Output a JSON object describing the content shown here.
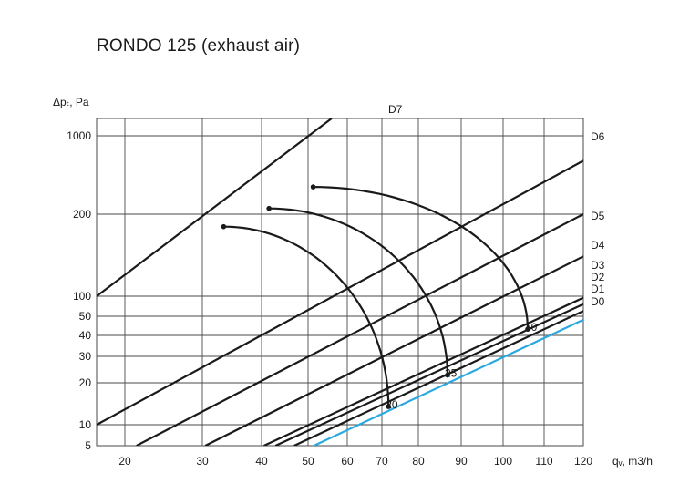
{
  "chart_data": {
    "type": "line",
    "title": "RONDO 125 (exhaust air)",
    "ylabel": "Δpₜ, Pa",
    "xlabel": "qᵥ, m3/h",
    "grid": true,
    "x_ticks": [
      "20",
      "30",
      "40",
      "50",
      "60",
      "70",
      "80",
      "90",
      "100",
      "110",
      "120"
    ],
    "y_ticks": [
      "1000",
      "200",
      "100",
      "50",
      "40",
      "30",
      "20",
      "10",
      "5"
    ],
    "colors": {
      "lines": "#1a1a1a",
      "highlight": "#29a8e0",
      "grid": "#4a4a4a"
    },
    "series": [
      {
        "name": "D7",
        "highlight": false,
        "x": [
          15.5,
          56
        ],
        "y": [
          100,
          1350
        ]
      },
      {
        "name": "D6",
        "highlight": false,
        "x": [
          15.5,
          120
        ],
        "y": [
          10,
          600
        ]
      },
      {
        "name": "D5",
        "highlight": false,
        "x": [
          21.5,
          120
        ],
        "y": [
          5,
          200
        ]
      },
      {
        "name": "D4",
        "highlight": false,
        "x": [
          30.5,
          120
        ],
        "y": [
          5,
          140
        ]
      },
      {
        "name": "D3",
        "highlight": false,
        "x": [
          40.5,
          120
        ],
        "y": [
          5,
          95
        ]
      },
      {
        "name": "D2",
        "highlight": false,
        "x": [
          43,
          120
        ],
        "y": [
          5,
          76
        ]
      },
      {
        "name": "D1",
        "highlight": false,
        "x": [
          47,
          120
        ],
        "y": [
          5,
          60
        ]
      },
      {
        "name": "D0",
        "highlight": true,
        "x": [
          51.5,
          120
        ],
        "y": [
          5,
          48
        ]
      }
    ],
    "sound_curves": [
      {
        "label": "20",
        "x": [
          33.6,
          71.8
        ],
        "y": [
          180,
          13.5
        ]
      },
      {
        "label": "25",
        "x": [
          41.6,
          86.8
        ],
        "y": [
          225,
          22.5
        ]
      },
      {
        "label": "30",
        "x": [
          51.3,
          106.0
        ],
        "y": [
          350,
          43
        ]
      }
    ]
  }
}
